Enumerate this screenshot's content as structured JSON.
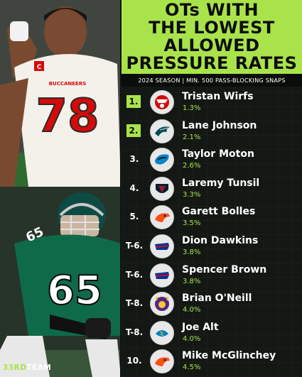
{
  "title_lines": [
    "OTs WITH",
    "THE LOWEST",
    "ALLOWED",
    "PRESSURE RATES"
  ],
  "subtitle": "2024 SEASON | MIN. 500 PASS-BLOCKING SNAPS",
  "brand": "33RDTEAM",
  "photos": {
    "top_jersey_number": "78",
    "top_jersey_team_text": "BUCCANEERS",
    "bottom_jersey_number": "65"
  },
  "rows": [
    {
      "rank": "1.",
      "name": "Tristan Wirfs",
      "rate": "1.3%",
      "highlight": true,
      "logo": "buccaneers-logo",
      "color": "#d50a0a"
    },
    {
      "rank": "2.",
      "name": "Lane Johnson",
      "rate": "2.1%",
      "highlight": true,
      "logo": "eagles-logo",
      "color": "#004c54"
    },
    {
      "rank": "3.",
      "name": "Taylor Moton",
      "rate": "2.6%",
      "highlight": false,
      "logo": "panthers-logo",
      "color": "#0085ca"
    },
    {
      "rank": "4.",
      "name": "Laremy Tunsil",
      "rate": "3.3%",
      "highlight": false,
      "logo": "texans-logo",
      "color": "#03202f"
    },
    {
      "rank": "5.",
      "name": "Garett Bolles",
      "rate": "3.5%",
      "highlight": false,
      "logo": "broncos-logo",
      "color": "#fb4f14"
    },
    {
      "rank": "T-6.",
      "name": "Dion Dawkins",
      "rate": "3.8%",
      "highlight": false,
      "logo": "bills-logo",
      "color": "#00338d"
    },
    {
      "rank": "T-6.",
      "name": "Spencer Brown",
      "rate": "3.8%",
      "highlight": false,
      "logo": "bills-logo",
      "color": "#00338d"
    },
    {
      "rank": "T-8.",
      "name": "Brian O'Neill",
      "rate": "4.0%",
      "highlight": false,
      "logo": "vikings-logo",
      "color": "#4f2683"
    },
    {
      "rank": "T-8.",
      "name": "Joe Alt",
      "rate": "4.0%",
      "highlight": false,
      "logo": "chargers-logo",
      "color": "#0080c6"
    },
    {
      "rank": "10.",
      "name": "Mike McGlinchey",
      "rate": "4.5%",
      "highlight": false,
      "logo": "broncos-logo",
      "color": "#fb4f14"
    }
  ]
}
